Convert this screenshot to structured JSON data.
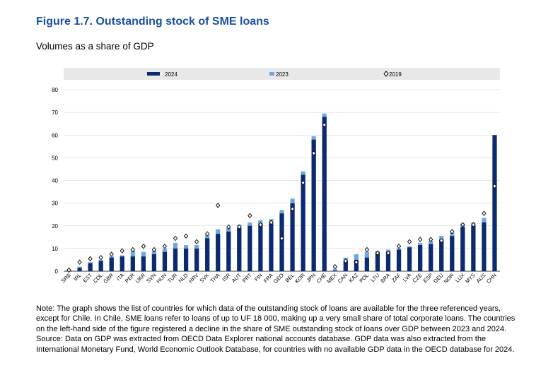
{
  "figure": {
    "title": "Figure 1.7. Outstanding stock of SME loans",
    "subtitle": "Volumes as a share of GDP"
  },
  "notes": {
    "note": "Note: The graph shows the list of countries for which data of the outstanding stock of loans are available for the three referenced years, except for Chile. In Chile, SME loans refer to loans of up to UF 18 000, making up a very small share of total corporate loans. The countries on the left-hand side of the figure registered a decline in the share of SME outstanding stock of loans over GDP between 2023 and 2024.",
    "source": "Source: Data on GDP was extracted from OECD Data Explorer national accounts database. GDP data was also extracted from the International Monetary Fund, World Economic Outlook Database, for countries with no available GDP data in the OECD database for 2024."
  },
  "colors": {
    "s2024": "#0b2a6f",
    "s2023": "#6fa8dc",
    "s2019_fill": "#ffffff",
    "s2019_stroke": "#000000",
    "legend_bg": "#e8e8e8"
  },
  "chart_data": {
    "type": "bar",
    "title": "Outstanding stock of SME loans",
    "ylabel": "Volumes as a share of GDP",
    "ylim": [
      0,
      80
    ],
    "yticks": [
      0,
      10,
      20,
      30,
      40,
      50,
      60,
      70,
      80
    ],
    "legend": [
      "2024",
      "2023",
      "2019"
    ],
    "categories": [
      "SRB",
      "IRL",
      "EST",
      "COL",
      "GBR",
      "ITA",
      "PER",
      "UKR",
      "SVN",
      "HUN",
      "TUR",
      "NLD",
      "HRV",
      "SVK",
      "THA",
      "ISR",
      "AUT",
      "PRT",
      "FIN",
      "FRA",
      "GEO",
      "BEL",
      "KOR",
      "JPN",
      "CHE",
      "MEX",
      "CAN",
      "KAZ",
      "POL",
      "LTU",
      "BRA",
      "ZAF",
      "LVA",
      "CZE",
      "ESP",
      "DEU",
      "NOR",
      "LUX",
      "MYS",
      "AUS",
      "CHN"
    ],
    "series": [
      {
        "name": "2024",
        "type": "bar",
        "values": [
          0.3,
          1.5,
          3.5,
          4.5,
          6,
          6.5,
          6.5,
          6.5,
          7.5,
          8.5,
          10,
          10,
          10,
          14.5,
          16.5,
          17.5,
          19,
          20,
          21,
          21,
          25.5,
          30,
          42.5,
          58,
          68,
          0.3,
          4.5,
          5,
          6,
          8,
          8.5,
          9.5,
          10.5,
          11.5,
          12,
          14,
          15.5,
          19.5,
          20,
          21.5,
          60
        ]
      },
      {
        "name": "2023",
        "type": "bar",
        "values": [
          0.5,
          2,
          4,
          5,
          6.5,
          7,
          9,
          8.5,
          9,
          10,
          12.5,
          11.5,
          11.5,
          16,
          18.5,
          19,
          20.5,
          21.5,
          22.5,
          23,
          27,
          32,
          44,
          59.5,
          69.5,
          1,
          6,
          7.5,
          8.5,
          9,
          9.5,
          10,
          11,
          12.5,
          13.5,
          15.5,
          17,
          21,
          21.5,
          23.5,
          55.5
        ]
      },
      {
        "name": "2019",
        "type": "marker",
        "values": [
          0.5,
          4,
          5.5,
          6,
          7.5,
          9,
          9.5,
          11,
          9.5,
          11,
          14.5,
          15.5,
          13,
          16.5,
          29,
          19.5,
          19.5,
          24.5,
          20.5,
          21.5,
          14.5,
          27.5,
          39,
          52,
          64.5,
          2,
          4.5,
          4,
          9.5,
          8,
          8,
          11,
          13,
          14,
          14,
          13.5,
          17.5,
          20.5,
          20.5,
          25.5,
          37.5
        ]
      }
    ]
  }
}
